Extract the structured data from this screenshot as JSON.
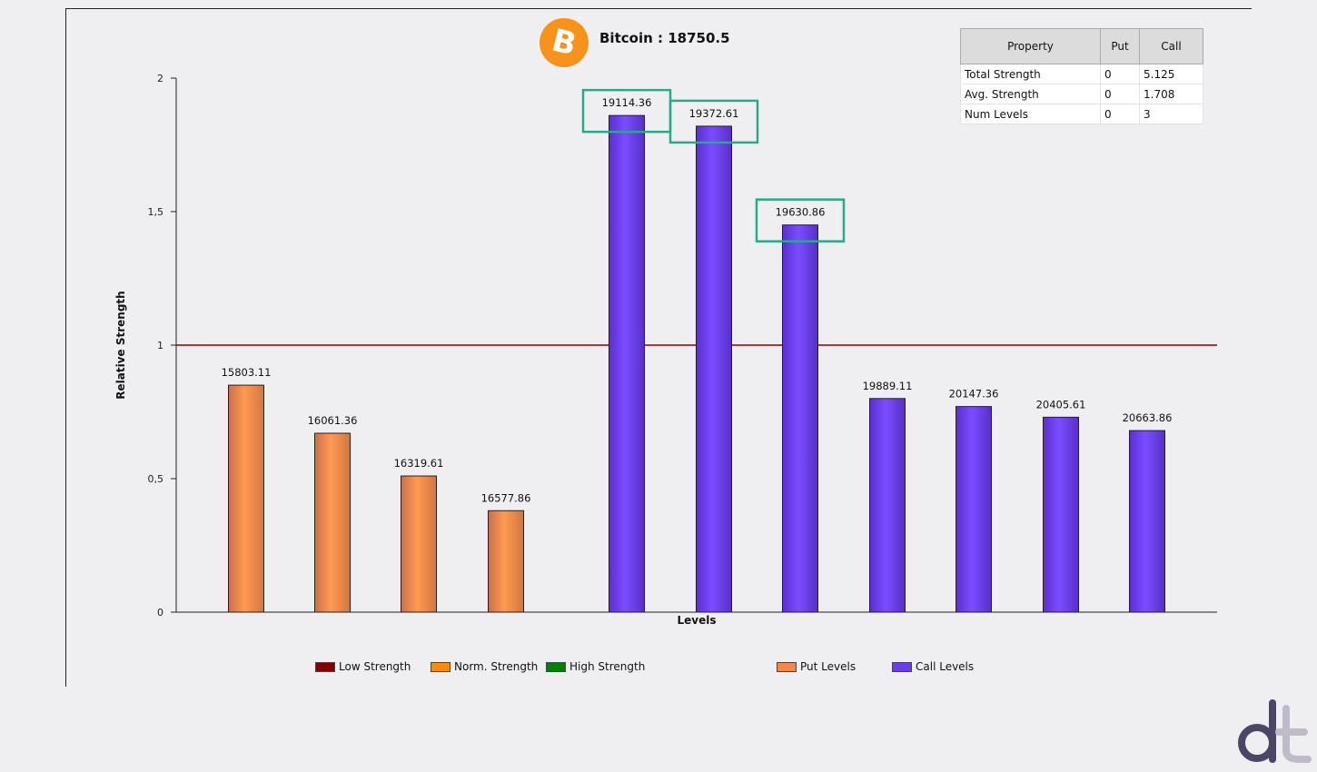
{
  "header": {
    "title": "Bitcoin : 18750.5",
    "logo_glyph": "B"
  },
  "summary_table": {
    "columns": [
      "Property",
      "Put",
      "Call"
    ],
    "rows": [
      [
        "Total Strength",
        "0",
        "5.125"
      ],
      [
        "Avg. Strength",
        "0",
        "1.708"
      ],
      [
        "Num Levels",
        "0",
        "3"
      ]
    ]
  },
  "legend": {
    "items": [
      {
        "label": "Low Strength",
        "color": "#7f0000"
      },
      {
        "label": "Norm. Strength",
        "color": "#ff8c00"
      },
      {
        "label": "High Strength",
        "color": "#007f00"
      },
      {
        "label": "Put Levels",
        "color": "#f08a4b"
      },
      {
        "label": "Call Levels",
        "color": "#6a3cf0"
      }
    ]
  },
  "chart_data": {
    "type": "bar",
    "xlabel": "Levels",
    "ylabel": "Relative Strength",
    "ylim": [
      0,
      2
    ],
    "y_ticks": [
      "0",
      "0,5",
      "1",
      "1,5",
      "2"
    ],
    "y_tick_values": [
      0,
      0.5,
      1,
      1.5,
      2
    ],
    "reference_line": {
      "value": 1,
      "color": "#8b0000"
    },
    "grid": false,
    "legend_position": "bottom",
    "series": [
      {
        "name": "Put Levels",
        "color": "#f08a4b",
        "categories": [
          "15803.11",
          "16061.36",
          "16319.61",
          "16577.86"
        ],
        "values": [
          0.85,
          0.67,
          0.51,
          0.38
        ]
      },
      {
        "name": "Call Levels",
        "color": "#6a3cf0",
        "categories": [
          "19114.36",
          "19372.61",
          "19630.86",
          "19889.11",
          "20147.36",
          "20405.61",
          "20663.86"
        ],
        "values": [
          1.86,
          1.82,
          1.45,
          0.8,
          0.77,
          0.73,
          0.68
        ],
        "highlighted": [
          "19114.36",
          "19372.61",
          "19630.86"
        ]
      }
    ]
  },
  "annotations": {
    "highlight_color": "#2aa98a"
  },
  "brand": {
    "colors": [
      "#4b4566",
      "#bfbcc8"
    ]
  }
}
